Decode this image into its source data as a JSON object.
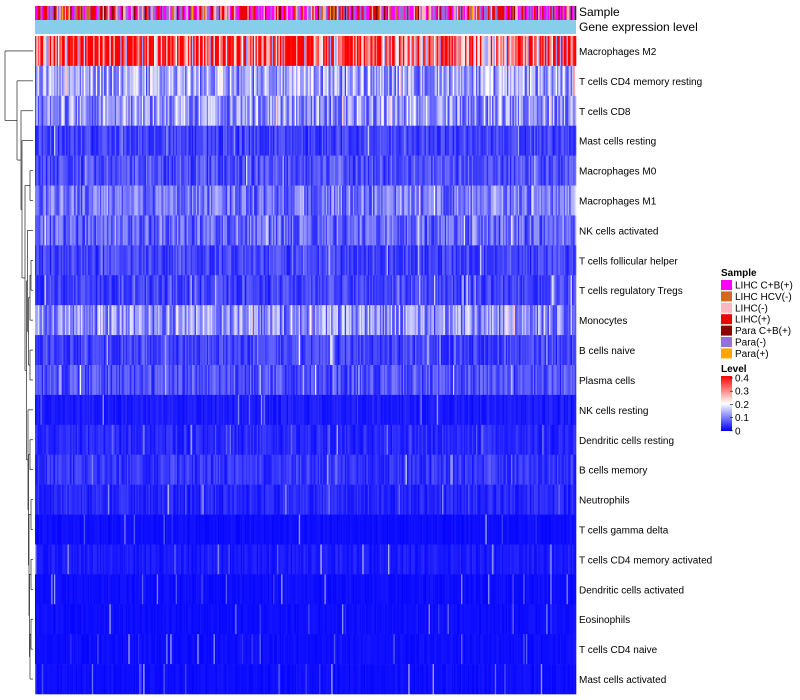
{
  "chart_data": {
    "type": "heatmap",
    "annotation_rows": [
      "Sample",
      "Gene expression level"
    ],
    "rows": [
      "Macrophages M2",
      "T cells CD4 memory resting",
      "T cells CD8",
      "Mast cells resting",
      "Macrophages M0",
      "Macrophages M1",
      "NK cells activated",
      "T cells follicular helper",
      "T cells regulatory  Tregs",
      "Monocytes",
      "B cells naive",
      "Plasma cells",
      "NK cells resting",
      "Dendritic cells resting",
      "B cells memory",
      "Neutrophils",
      "T cells gamma delta",
      "T cells CD4 memory activated",
      "Dendritic cells activated",
      "Eosinophils",
      "T cells CD4 naive",
      "Mast cells activated"
    ],
    "row_mean_level": [
      0.33,
      0.13,
      0.12,
      0.05,
      0.06,
      0.09,
      0.08,
      0.05,
      0.05,
      0.11,
      0.05,
      0.06,
      0.02,
      0.03,
      0.04,
      0.03,
      0.01,
      0.02,
      0.01,
      0.01,
      0.01,
      0.01
    ],
    "sample_groups": [
      {
        "name": "LIHC C+B(+)",
        "color": "#ff00ff"
      },
      {
        "name": "LIHC HCV(-)",
        "color": "#d2691e"
      },
      {
        "name": "LIHC(-)",
        "color": "#ffb6c1"
      },
      {
        "name": "LIHC(+)",
        "color": "#ee0000"
      },
      {
        "name": "Para C+B(+)",
        "color": "#8b0000"
      },
      {
        "name": "Para(-)",
        "color": "#9370db"
      },
      {
        "name": "Para(+)",
        "color": "#ffa500"
      }
    ],
    "gene_expression_color": "#87ceeb",
    "n_samples": 400,
    "legend": {
      "sample_title": "Sample",
      "level_title": "Level",
      "level_ticks": [
        "0.4",
        "0.3",
        "0.2",
        "0.1",
        "0"
      ],
      "level_range": [
        0,
        0.4
      ],
      "level_colors": [
        "#0000ff",
        "#ffffff",
        "#ff0000"
      ],
      "placement": "right"
    }
  }
}
